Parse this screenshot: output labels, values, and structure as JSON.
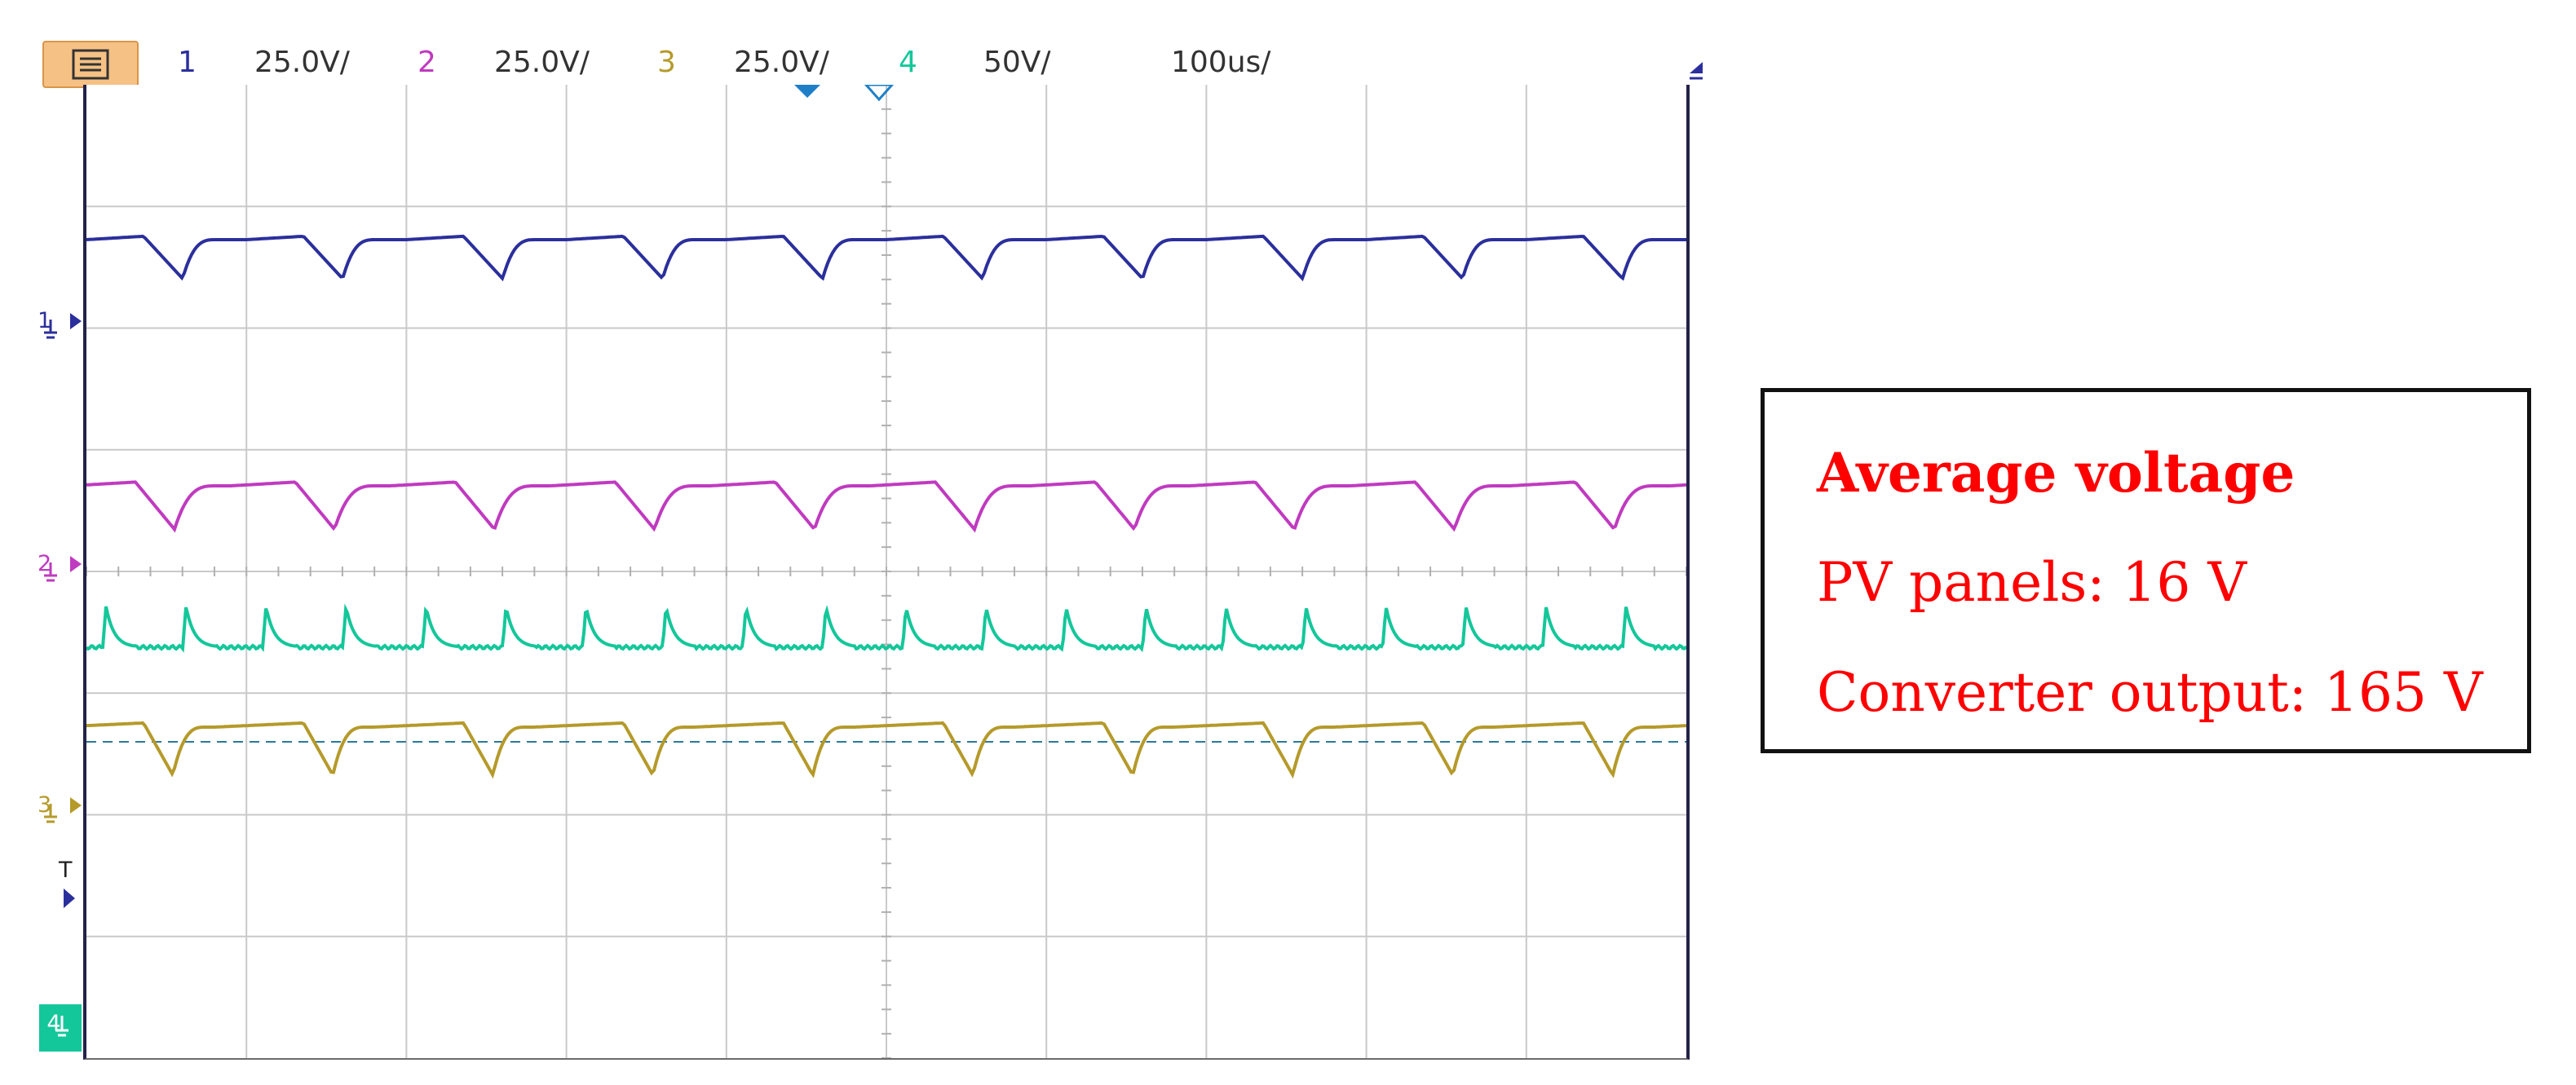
{
  "toolbar": {
    "menu_icon": "menu-list-icon",
    "channels": [
      {
        "number": "1",
        "scale": "25.0V/",
        "color": "#2b2f9c"
      },
      {
        "number": "2",
        "scale": "25.0V/",
        "color": "#c03ac0"
      },
      {
        "number": "3",
        "scale": "25.0V/",
        "color": "#b59a2a"
      },
      {
        "number": "4",
        "scale": "50V/",
        "color": "#14c79a"
      }
    ],
    "timebase": "100us/",
    "trigger_icon": "trigger-arrow-icon"
  },
  "markers": {
    "ch1": "1",
    "ch2": "2",
    "ch3": "3",
    "ch4": "4",
    "trigger": "T"
  },
  "traces": {
    "ch1_color": "#2b2f9c",
    "ch2_color": "#c03ac0",
    "ch3_color": "#b59a2a",
    "ch4_color": "#14c79a",
    "cycles": 10
  },
  "annotation": {
    "title": "Average voltage",
    "line1": "PV panels: 16 V",
    "line2": "Converter output: 165 V",
    "text_color": "#ff0000"
  }
}
